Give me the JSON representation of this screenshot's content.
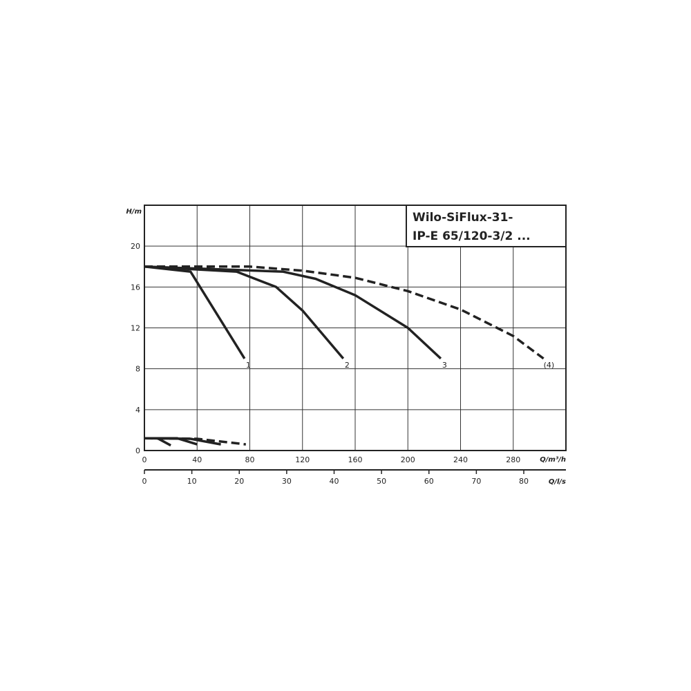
{
  "chart_data": {
    "type": "line",
    "title": "Wilo-SiFlux-31- IP-E 65/120-3/2 ...",
    "title_lines": [
      "Wilo-SiFlux-31-",
      "IP-E 65/120-3/2 ..."
    ],
    "ylabel": "H/m",
    "xlabel": "Q/m³/h",
    "x2label": "Q/l/s",
    "xlim": [
      0,
      320
    ],
    "ylim": [
      0,
      24
    ],
    "xticks": [
      0,
      40,
      80,
      120,
      160,
      200,
      240,
      280
    ],
    "yticks": [
      0,
      4,
      8,
      12,
      16,
      20
    ],
    "x2ticks": [
      0,
      10,
      20,
      30,
      40,
      50,
      60,
      70,
      80
    ],
    "grid": true,
    "series": [
      {
        "name": "1",
        "style": "solid",
        "points": [
          [
            0,
            18
          ],
          [
            35,
            17.5
          ],
          [
            76,
            9
          ]
        ]
      },
      {
        "name": "2",
        "style": "solid",
        "points": [
          [
            0,
            18
          ],
          [
            70,
            17.5
          ],
          [
            100,
            16
          ],
          [
            120,
            13.7
          ],
          [
            151,
            9
          ]
        ]
      },
      {
        "name": "3",
        "style": "solid",
        "points": [
          [
            0,
            18
          ],
          [
            105,
            17.5
          ],
          [
            130,
            16.8
          ],
          [
            160,
            15.2
          ],
          [
            200,
            12
          ],
          [
            225,
            9
          ]
        ]
      },
      {
        "name": "(4)",
        "style": "dashed",
        "points": [
          [
            0,
            18
          ],
          [
            80,
            18
          ],
          [
            120,
            17.6
          ],
          [
            160,
            16.9
          ],
          [
            200,
            15.6
          ],
          [
            240,
            13.8
          ],
          [
            280,
            11.2
          ],
          [
            303,
            9
          ]
        ]
      },
      {
        "name": "",
        "style": "solid",
        "points": [
          [
            0,
            1.2
          ],
          [
            10,
            1.2
          ],
          [
            20,
            0.5
          ]
        ]
      },
      {
        "name": "",
        "style": "solid",
        "points": [
          [
            0,
            1.2
          ],
          [
            25,
            1.2
          ],
          [
            40,
            0.6
          ]
        ]
      },
      {
        "name": "",
        "style": "solid",
        "points": [
          [
            0,
            1.2
          ],
          [
            35,
            1.15
          ],
          [
            58,
            0.6
          ]
        ]
      },
      {
        "name": "",
        "style": "dashed",
        "points": [
          [
            0,
            1.2
          ],
          [
            40,
            1.15
          ],
          [
            77,
            0.6
          ]
        ]
      }
    ]
  },
  "colors": {
    "line": "#222222",
    "grid": "#333333"
  }
}
